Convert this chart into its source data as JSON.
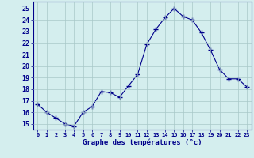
{
  "hours": [
    0,
    1,
    2,
    3,
    4,
    5,
    6,
    7,
    8,
    9,
    10,
    11,
    12,
    13,
    14,
    15,
    16,
    17,
    18,
    19,
    20,
    21,
    22,
    23
  ],
  "temps": [
    16.7,
    16.0,
    15.5,
    15.0,
    14.8,
    16.0,
    16.5,
    17.8,
    17.7,
    17.3,
    18.3,
    19.3,
    21.9,
    23.2,
    24.2,
    25.0,
    24.3,
    24.0,
    22.9,
    21.4,
    19.7,
    18.9,
    18.9,
    18.2
  ],
  "line_color": "#00008B",
  "marker": "+",
  "marker_size": 4,
  "bg_color": "#D4EEEE",
  "grid_color": "#A8C8C8",
  "xlabel": "Graphe des températures (°c)",
  "xlabel_color": "#00008B",
  "ylabel_ticks": [
    15,
    16,
    17,
    18,
    19,
    20,
    21,
    22,
    23,
    24,
    25
  ],
  "ylim": [
    14.5,
    25.6
  ],
  "xlim": [
    -0.5,
    23.5
  ],
  "tick_color": "#00008B",
  "axis_color": "#00008B"
}
